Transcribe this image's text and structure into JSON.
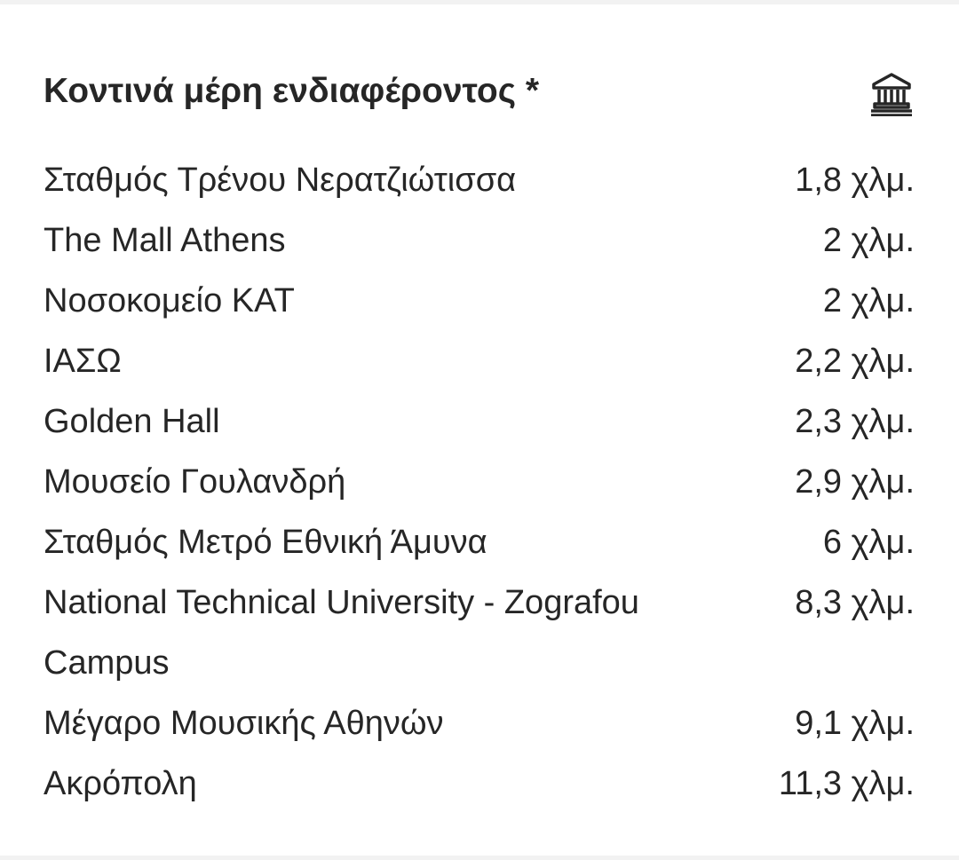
{
  "section": {
    "title": "Κοντινά μέρη ενδιαφέροντος *",
    "icon": "museum-icon",
    "places": [
      {
        "name": "Σταθμός Τρένου Νερατζιώτισσα",
        "distance": "1,8 χλμ."
      },
      {
        "name": "The Mall Athens",
        "distance": "2 χλμ."
      },
      {
        "name": "Νοσοκομείο ΚΑΤ",
        "distance": "2 χλμ."
      },
      {
        "name": "ΙΑΣΩ",
        "distance": "2,2 χλμ."
      },
      {
        "name": "Golden Hall",
        "distance": "2,3 χλμ."
      },
      {
        "name": "Μουσείο Γουλανδρή",
        "distance": "2,9 χλμ."
      },
      {
        "name": "Σταθμός Μετρό Εθνική Άμυνα",
        "distance": "6 χλμ."
      },
      {
        "name": "National Technical University - Zografou Campus",
        "distance": "8,3 χλμ."
      },
      {
        "name": "Μέγαρο Μουσικής Αθηνών",
        "distance": "9,1 χλμ."
      },
      {
        "name": "Ακρόπολη",
        "distance": "11,3 χλμ."
      }
    ]
  }
}
